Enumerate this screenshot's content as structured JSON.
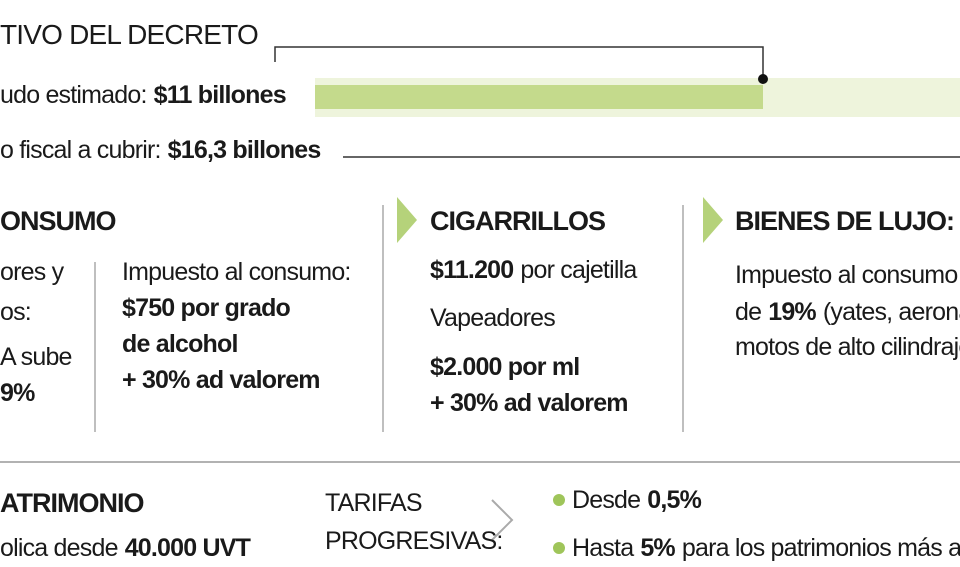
{
  "header": {
    "title": "TIVO DEL DECRETO"
  },
  "summary": [
    {
      "label": "udo estimado:",
      "amount": "$11 billones"
    },
    {
      "label": "o fiscal a cubrir:",
      "amount": "$16,3 billones"
    }
  ],
  "consumo": {
    "title": "ONSUMO",
    "left": [
      "ores y",
      "os:",
      "A sube",
      "9%"
    ],
    "intro": "Impuesto al consumo:",
    "lines": [
      "$750 por grado",
      "de alcohol",
      "+ 30% ad valorem"
    ]
  },
  "cigarrillos": {
    "title": "CIGARRILLOS",
    "price": "$11.200",
    "price_unit": "por cajetilla",
    "vape_label": "Vapeadores",
    "vape_price": "$2.000 por ml",
    "vape_extra": "+ 30% ad valorem"
  },
  "lujo": {
    "title": "BIENES DE LUJO:",
    "line1": "Impuesto al consumo",
    "line2_pre": "de",
    "rate": "19%",
    "line2_post": "(yates, aeronaves",
    "line3": "motos de alto cilindraje"
  },
  "patrimonio": {
    "title": "ATRIMONIO",
    "applies": "olica desde",
    "threshold": "40.000 UVT",
    "tarifas": [
      "TARIFAS",
      "PROGRESIVAS:"
    ],
    "bullets": [
      {
        "pre": "Desde",
        "rate": "0,5%",
        "post": null
      },
      {
        "pre": "Hasta",
        "rate": "5%",
        "post": "para los patrimonios más alt"
      }
    ]
  }
}
